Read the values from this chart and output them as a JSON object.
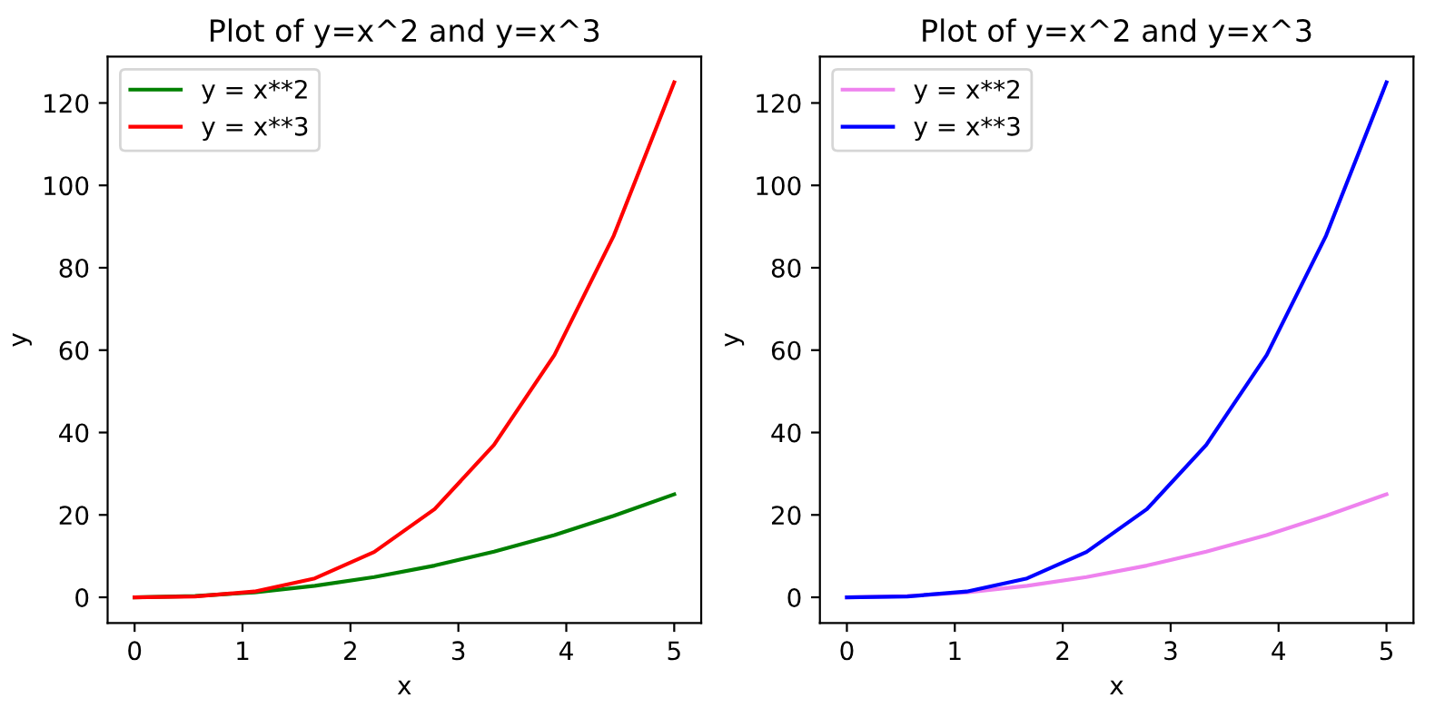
{
  "chart_data": [
    {
      "type": "line",
      "title": "Plot of y=x^2 and y=x^3",
      "xlabel": "x",
      "ylabel": "y",
      "x": [
        0,
        0.56,
        1.11,
        1.67,
        2.22,
        2.78,
        3.33,
        3.89,
        4.44,
        5
      ],
      "series": [
        {
          "name": "y = x**2",
          "color": "#008000",
          "values": [
            0,
            0.3,
            1.2,
            2.8,
            4.9,
            7.7,
            11.1,
            15.1,
            19.8,
            25
          ]
        },
        {
          "name": "y = x**3",
          "color": "#ff0000",
          "values": [
            0,
            0.2,
            1.4,
            4.6,
            11,
            21.4,
            37,
            58.8,
            87.8,
            125
          ]
        }
      ],
      "xlim": [
        -0.25,
        5.25
      ],
      "xticks": [
        0,
        1,
        2,
        3,
        4,
        5
      ],
      "ylim": [
        -6.25,
        131.25
      ],
      "yticks": [
        0,
        20,
        40,
        60,
        80,
        100,
        120
      ],
      "legend": "top left",
      "grid": false,
      "marker": "none",
      "line_style": "solid"
    },
    {
      "type": "line",
      "title": "Plot of y=x^2 and y=x^3",
      "xlabel": "x",
      "ylabel": "y",
      "x": [
        0,
        0.56,
        1.11,
        1.67,
        2.22,
        2.78,
        3.33,
        3.89,
        4.44,
        5
      ],
      "series": [
        {
          "name": "y = x**2",
          "color": "#ee82ee",
          "values": [
            0,
            0.3,
            1.2,
            2.8,
            4.9,
            7.7,
            11.1,
            15.1,
            19.8,
            25
          ]
        },
        {
          "name": "y = x**3",
          "color": "#0000ff",
          "values": [
            0,
            0.2,
            1.4,
            4.6,
            11,
            21.4,
            37,
            58.8,
            87.8,
            125
          ]
        }
      ],
      "xlim": [
        -0.25,
        5.25
      ],
      "xticks": [
        0,
        1,
        2,
        3,
        4,
        5
      ],
      "ylim": [
        -6.25,
        131.25
      ],
      "yticks": [
        0,
        20,
        40,
        60,
        80,
        100,
        120
      ],
      "legend": "top left",
      "grid": false,
      "marker": "none",
      "line_style": "solid"
    }
  ]
}
